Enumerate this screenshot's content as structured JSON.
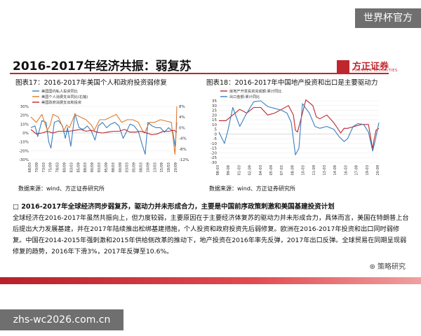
{
  "watermark_top": "世界杯官方",
  "watermark_bottom": "zhs-wc2026.com.cn",
  "slide_title": "2016-2017年经济共振：弱复苏",
  "logo": {
    "cn": "方正证券",
    "en": "FOUNDER SECURITIES"
  },
  "sub_heading": "□ 2016-2017年全球经济同步弱复苏，驱动力并未形成合力，主要是中国前序政策刺激和美国基建投资计划",
  "body": "全球经济在2016-2017年虽然共振向上，但力度较弱，主要原因在于主要经济体复苏的驱动力并未形成合力，具体而言，美国在特朗普上台后提出大力发展基建，并在2017年陆续推出松绑基建措施，个人投资和政府投资先后弱修复。欧洲在2016-2017年投资和出口同时弱修复。中国在2014-2015年强刺激和2015年供给侧改革的推动下，地产投资在2016年率先反弹，2017年出口反弹。全球贸易在同期呈现弱修复的趋势，2016年下滑3%，2017年反弹至10.6%。",
  "wechat": "策略研究",
  "colors": {
    "accent": "#c0262d",
    "blue": "#3a7fc0",
    "orange": "#e07a2e",
    "red": "#c0262d"
  },
  "chart_data": [
    {
      "type": "line",
      "figure_title": "图表17：2016-2017年美国个人和政府投资弱修复",
      "source": "数据来源：wind、方正证券研究所",
      "legend": [
        "美国国内私人投资同比",
        "美国个人消费支出同比(右轴)",
        "美国政府消费支出和投资"
      ],
      "legend_placement": "top-left",
      "left_axis": {
        "ticks": [
          "30%",
          "20%",
          "10%",
          "0%",
          "-10%",
          "-20%",
          "-30%"
        ],
        "range": [
          -30,
          30
        ]
      },
      "right_axis": {
        "ticks": [
          "8%",
          "4%",
          "0%",
          "-4%",
          "-8%",
          "-12%"
        ],
        "range": [
          -12,
          8
        ]
      },
      "x_ticks": [
        "68/03",
        "70/09",
        "73/03",
        "75/09",
        "78/03",
        "80/09",
        "83/03",
        "85/09",
        "88/03",
        "90/09",
        "93/03",
        "95/09",
        "98/03",
        "00/09",
        "03/03",
        "05/09",
        "08/03",
        "10/09",
        "13/03",
        "15/09",
        "18/03",
        "20/09"
      ],
      "x_range": [
        1968,
        2021
      ],
      "series": [
        {
          "name": "美国国内私人投资同比",
          "axis": "left",
          "x": [
            1968,
            1969.5,
            1970.5,
            1972,
            1973.5,
            1974.5,
            1975.3,
            1976.5,
            1978,
            1979.5,
            1980.5,
            1981.3,
            1982.5,
            1984,
            1985.5,
            1987,
            1988.5,
            1990,
            1991.3,
            1992.5,
            1994,
            1995.5,
            1997,
            1998.5,
            2000,
            2001.5,
            2002.5,
            2004,
            2005.5,
            2007,
            2008.3,
            2009.5,
            2010.5,
            2012,
            2013.5,
            2015,
            2016.5,
            2018,
            2019.5,
            2020.4,
            2021
          ],
          "y": [
            6,
            8,
            -4,
            14,
            12,
            -10,
            -17,
            12,
            14,
            8,
            -6,
            6,
            -15,
            22,
            6,
            4,
            8,
            2,
            -8,
            8,
            12,
            6,
            10,
            12,
            8,
            -6,
            0,
            10,
            8,
            2,
            -12,
            -24,
            12,
            8,
            6,
            6,
            1,
            6,
            2,
            -15,
            12
          ]
        },
        {
          "name": "美国个人消费支出同比(右轴)",
          "axis": "right",
          "x": [
            1968,
            1970,
            1972,
            1974,
            1975,
            1976,
            1978,
            1980,
            1981,
            1982,
            1984,
            1986,
            1988,
            1990,
            1991,
            1993,
            1995,
            1997,
            1999,
            2001,
            2003,
            2005,
            2007,
            2008.5,
            2009.3,
            2011,
            2013,
            2015,
            2017,
            2019,
            2020.3,
            2020.6,
            2021
          ],
          "y": [
            4,
            2,
            5,
            -1,
            1,
            5,
            4,
            -1,
            1,
            0,
            5,
            4,
            3,
            1,
            -1,
            3,
            3,
            4,
            5,
            2,
            3,
            3,
            2,
            -1,
            -2,
            2,
            2,
            3,
            2.5,
            2,
            -10,
            -6,
            8
          ]
        },
        {
          "name": "美国政府消费支出和投资",
          "axis": "left",
          "x": [
            1968,
            1970,
            1972,
            1974,
            1976,
            1978,
            1980,
            1982,
            1984,
            1986,
            1988,
            1990,
            1992,
            1994,
            1996,
            1998,
            2000,
            2002,
            2004,
            2006,
            2008,
            2010,
            2012,
            2014,
            2016,
            2018,
            2020,
            2021
          ],
          "y": [
            4,
            -1,
            0,
            2,
            0,
            2,
            2,
            2,
            3,
            4,
            2,
            3,
            1,
            0,
            1,
            2,
            2,
            4,
            1,
            1,
            2,
            0,
            -2,
            -1,
            2,
            2,
            3,
            1
          ]
        }
      ]
    },
    {
      "type": "line",
      "figure_title": "图表18：2016-2017年中国地产投资和出口是主要驱动力",
      "source": "数据来源：wind、方正证券研究所",
      "legend": [
        "房地产开发投资完成额:累计同比",
        "出口金额:累计同比"
      ],
      "legend_placement": "top-left",
      "left_axis": {
        "ticks": [
          "35",
          "30",
          "25",
          "20",
          "15",
          "10",
          "5",
          "0",
          "-5",
          "-10",
          "-15",
          "-20",
          "-25",
          "-30"
        ],
        "range": [
          -30,
          35
        ]
      },
      "x_ticks": [
        "98-03",
        "99-09",
        "01-03",
        "02-09",
        "04-03",
        "05-09",
        "07-03",
        "08-09",
        "10-03",
        "11-09",
        "13-03",
        "14-09",
        "16-03",
        "17-09",
        "19-03",
        "20-09"
      ],
      "x_range": [
        1998,
        2021
      ],
      "series": [
        {
          "name": "房地产开发投资完成额:累计同比",
          "x": [
            1998,
            1999,
            2000,
            2001,
            2002,
            2003,
            2004,
            2005,
            2006,
            2007,
            2008,
            2008.7,
            2009,
            2009.3,
            2009.8,
            2010.5,
            2011.5,
            2012,
            2012.5,
            2013.5,
            2014.5,
            2015.5,
            2016,
            2016.5,
            2017.5,
            2018.5,
            2019.5,
            2020.1,
            2020.3,
            2020.6,
            2021
          ],
          "y": [
            14,
            14,
            20,
            26,
            22,
            28,
            28,
            20,
            22,
            26,
            30,
            20,
            4,
            2,
            16,
            36,
            30,
            18,
            16,
            20,
            12,
            1,
            6,
            6,
            8,
            10,
            10,
            -16,
            -6,
            4,
            6
          ]
        },
        {
          "name": "出口金额:累计同比",
          "x": [
            1998,
            1998.8,
            1999.3,
            2000,
            2001,
            2002,
            2003,
            2004,
            2005,
            2006,
            2007,
            2007.8,
            2008.4,
            2009,
            2009.5,
            2010,
            2011,
            2011.8,
            2012.5,
            2013.5,
            2014.5,
            2015.3,
            2016,
            2016.5,
            2017.3,
            2018,
            2018.8,
            2019.5,
            2020.1,
            2020.5,
            2021
          ],
          "y": [
            2,
            -10,
            4,
            28,
            8,
            22,
            34,
            35,
            29,
            27,
            25,
            22,
            12,
            -22,
            -15,
            32,
            22,
            8,
            6,
            8,
            5,
            -3,
            -8,
            -5,
            8,
            11,
            10,
            2,
            -18,
            -6,
            12
          ]
        }
      ]
    }
  ]
}
